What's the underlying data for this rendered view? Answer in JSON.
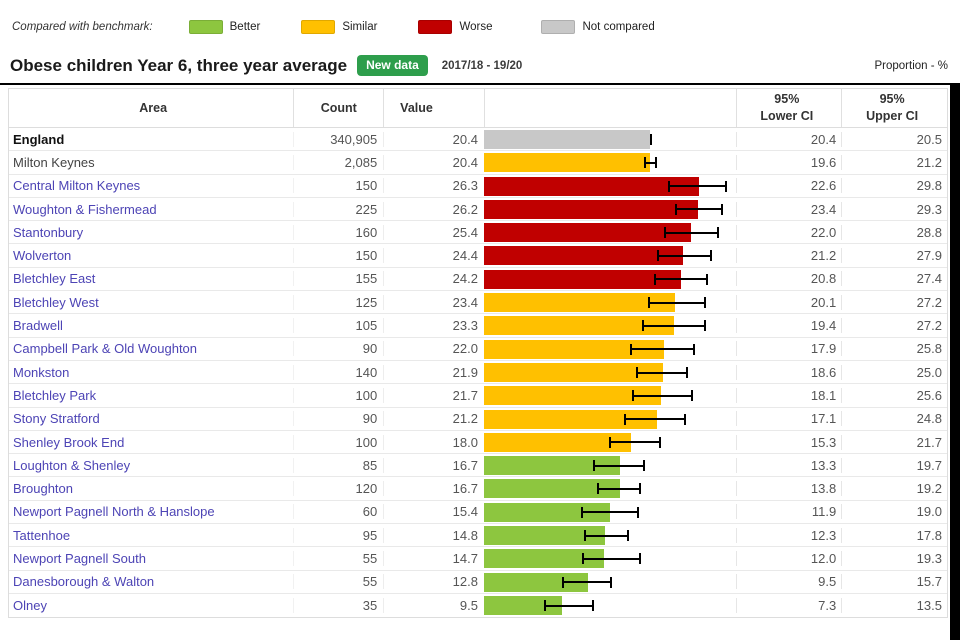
{
  "colors": {
    "better": "#8dc63f",
    "similar": "#ffc000",
    "worse": "#c00000",
    "not-compared": "#c8c8c8",
    "badge": "#2e9e4c",
    "link": "#4d44b5"
  },
  "legend": {
    "label": "Compared with benchmark:",
    "items": [
      {
        "key": "better",
        "label": "Better"
      },
      {
        "key": "similar",
        "label": "Similar"
      },
      {
        "key": "worse",
        "label": "Worse"
      },
      {
        "key": "not-compared",
        "label": "Not compared"
      }
    ]
  },
  "header": {
    "title": "Obese children Year 6, three year average",
    "badge": "New data",
    "period": "2017/18 - 19/20",
    "unit": "Proportion - %"
  },
  "table": {
    "columns": {
      "area": "Area",
      "count": "Count",
      "value": "Value",
      "bar": "",
      "lower": "95%\nLower CI",
      "upper": "95%\nUpper CI"
    }
  },
  "chart_data": {
    "type": "bar",
    "orientation": "horizontal",
    "title": "Obese children Year 6, three year average",
    "period": "2017/18 - 19/20",
    "unit": "Proportion - %",
    "xlim": [
      0,
      31
    ],
    "legend_position": "top",
    "grid": false,
    "error_bars": "95% confidence intervals",
    "rows": [
      {
        "area": "England",
        "count": "340,905",
        "value": "20.4",
        "lower_ci": "20.4",
        "upper_ci": "20.5",
        "comparison": "not-compared",
        "link": false,
        "emphasis": "benchmark"
      },
      {
        "area": "Milton Keynes",
        "count": "2,085",
        "value": "20.4",
        "lower_ci": "19.6",
        "upper_ci": "21.2",
        "comparison": "similar",
        "link": false,
        "emphasis": "parent"
      },
      {
        "area": "Central Milton Keynes",
        "count": "150",
        "value": "26.3",
        "lower_ci": "22.6",
        "upper_ci": "29.8",
        "comparison": "worse",
        "link": true
      },
      {
        "area": "Woughton & Fishermead",
        "count": "225",
        "value": "26.2",
        "lower_ci": "23.4",
        "upper_ci": "29.3",
        "comparison": "worse",
        "link": true
      },
      {
        "area": "Stantonbury",
        "count": "160",
        "value": "25.4",
        "lower_ci": "22.0",
        "upper_ci": "28.8",
        "comparison": "worse",
        "link": true
      },
      {
        "area": "Wolverton",
        "count": "150",
        "value": "24.4",
        "lower_ci": "21.2",
        "upper_ci": "27.9",
        "comparison": "worse",
        "link": true
      },
      {
        "area": "Bletchley East",
        "count": "155",
        "value": "24.2",
        "lower_ci": "20.8",
        "upper_ci": "27.4",
        "comparison": "worse",
        "link": true
      },
      {
        "area": "Bletchley West",
        "count": "125",
        "value": "23.4",
        "lower_ci": "20.1",
        "upper_ci": "27.2",
        "comparison": "similar",
        "link": true
      },
      {
        "area": "Bradwell",
        "count": "105",
        "value": "23.3",
        "lower_ci": "19.4",
        "upper_ci": "27.2",
        "comparison": "similar",
        "link": true
      },
      {
        "area": "Campbell Park & Old Woughton",
        "count": "90",
        "value": "22.0",
        "lower_ci": "17.9",
        "upper_ci": "25.8",
        "comparison": "similar",
        "link": true
      },
      {
        "area": "Monkston",
        "count": "140",
        "value": "21.9",
        "lower_ci": "18.6",
        "upper_ci": "25.0",
        "comparison": "similar",
        "link": true
      },
      {
        "area": "Bletchley Park",
        "count": "100",
        "value": "21.7",
        "lower_ci": "18.1",
        "upper_ci": "25.6",
        "comparison": "similar",
        "link": true
      },
      {
        "area": "Stony Stratford",
        "count": "90",
        "value": "21.2",
        "lower_ci": "17.1",
        "upper_ci": "24.8",
        "comparison": "similar",
        "link": true
      },
      {
        "area": "Shenley Brook End",
        "count": "100",
        "value": "18.0",
        "lower_ci": "15.3",
        "upper_ci": "21.7",
        "comparison": "similar",
        "link": true
      },
      {
        "area": "Loughton & Shenley",
        "count": "85",
        "value": "16.7",
        "lower_ci": "13.3",
        "upper_ci": "19.7",
        "comparison": "better",
        "link": true
      },
      {
        "area": "Broughton",
        "count": "120",
        "value": "16.7",
        "lower_ci": "13.8",
        "upper_ci": "19.2",
        "comparison": "better",
        "link": true
      },
      {
        "area": "Newport Pagnell North & Hanslope",
        "count": "60",
        "value": "15.4",
        "lower_ci": "11.9",
        "upper_ci": "19.0",
        "comparison": "better",
        "link": true
      },
      {
        "area": "Tattenhoe",
        "count": "95",
        "value": "14.8",
        "lower_ci": "12.3",
        "upper_ci": "17.8",
        "comparison": "better",
        "link": true
      },
      {
        "area": "Newport Pagnell South",
        "count": "55",
        "value": "14.7",
        "lower_ci": "12.0",
        "upper_ci": "19.3",
        "comparison": "better",
        "link": true
      },
      {
        "area": "Danesborough & Walton",
        "count": "55",
        "value": "12.8",
        "lower_ci": "9.5",
        "upper_ci": "15.7",
        "comparison": "better",
        "link": true
      },
      {
        "area": "Olney",
        "count": "35",
        "value": "9.5",
        "lower_ci": "7.3",
        "upper_ci": "13.5",
        "comparison": "better",
        "link": true
      }
    ]
  }
}
